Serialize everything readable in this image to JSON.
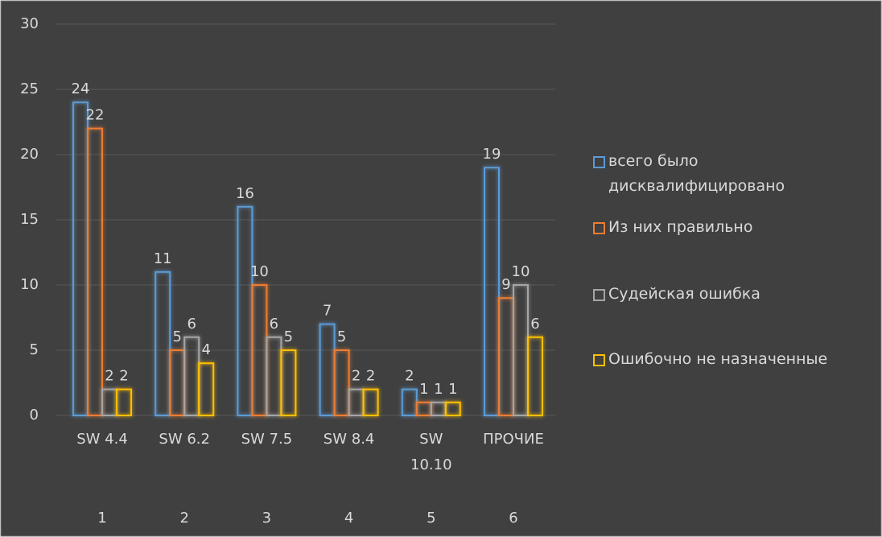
{
  "chart_data": {
    "type": "bar",
    "categories": [
      "SW 4.4",
      "SW 6.2",
      "SW 7.5",
      "SW 8.4",
      "SW 10.10",
      "ПРОЧИЕ"
    ],
    "category_groups": [
      "1",
      "2",
      "3",
      "4",
      "5",
      "6"
    ],
    "series": [
      {
        "name": "всего было дисквалифицировано",
        "color": "#5b9bd5",
        "values": [
          24,
          11,
          16,
          7,
          2,
          19
        ]
      },
      {
        "name": "Из них правильно",
        "color": "#ed7d31",
        "values": [
          22,
          5,
          10,
          5,
          1,
          9
        ]
      },
      {
        "name": "Судейская ошибка",
        "color": "#a5a5a5",
        "values": [
          2,
          6,
          6,
          2,
          1,
          10
        ]
      },
      {
        "name": "Ошибочно не назначенные",
        "color": "#ffc000",
        "values": [
          2,
          4,
          5,
          2,
          1,
          6
        ]
      }
    ],
    "ylim": [
      0,
      30
    ],
    "yticks": [
      0,
      5,
      10,
      15,
      20,
      25,
      30
    ],
    "grid": true,
    "legend": "right"
  }
}
